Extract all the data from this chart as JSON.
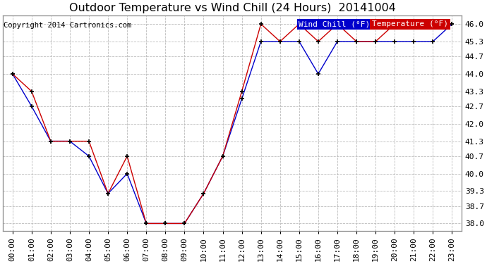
{
  "title": "Outdoor Temperature vs Wind Chill (24 Hours)  20141004",
  "copyright": "Copyright 2014 Cartronics.com",
  "ylim": [
    37.7,
    46.35
  ],
  "yticks": [
    38.0,
    38.7,
    39.3,
    40.0,
    40.7,
    41.3,
    42.0,
    42.7,
    43.3,
    44.0,
    44.7,
    45.3,
    46.0
  ],
  "xtick_labels": [
    "00:00",
    "01:00",
    "02:00",
    "03:00",
    "04:00",
    "05:00",
    "06:00",
    "07:00",
    "08:00",
    "09:00",
    "10:00",
    "11:00",
    "12:00",
    "13:00",
    "14:00",
    "15:00",
    "16:00",
    "17:00",
    "18:00",
    "19:00",
    "20:00",
    "21:00",
    "22:00",
    "23:00"
  ],
  "wind_chill_color": "#0000cc",
  "temp_color": "#cc0000",
  "background_color": "#ffffff",
  "grid_color": "#bbbbbb",
  "legend_wind_chill_bg": "#0000cc",
  "legend_temp_bg": "#cc0000",
  "wind_chill_label": "Wind Chill (°F)",
  "temp_label": "Temperature (°F)",
  "wind_chill_x": [
    0,
    1,
    2,
    3,
    4,
    5,
    6,
    7,
    8,
    9,
    10,
    11,
    12,
    13,
    14,
    15,
    16,
    17,
    18,
    19,
    20,
    21,
    22,
    23
  ],
  "wind_chill_y": [
    44.0,
    42.7,
    41.3,
    41.3,
    40.7,
    39.2,
    40.0,
    38.0,
    38.0,
    38.0,
    39.2,
    40.7,
    43.0,
    45.3,
    45.3,
    45.3,
    44.0,
    45.3,
    45.3,
    45.3,
    45.3,
    45.3,
    45.3,
    46.0
  ],
  "temp_x": [
    0,
    1,
    2,
    3,
    4,
    5,
    6,
    7,
    8,
    9,
    10,
    11,
    12,
    13,
    14,
    15,
    16,
    17,
    18,
    19,
    20,
    21,
    22,
    23
  ],
  "temp_y": [
    44.0,
    43.3,
    41.3,
    41.3,
    41.3,
    39.2,
    40.7,
    38.0,
    38.0,
    38.0,
    39.2,
    40.7,
    43.3,
    46.0,
    45.3,
    46.0,
    45.3,
    46.0,
    45.3,
    45.3,
    46.0,
    46.0,
    46.0,
    46.0
  ],
  "title_fontsize": 11.5,
  "copyright_fontsize": 7.5,
  "tick_fontsize": 8,
  "legend_fontsize": 8,
  "figwidth": 6.9,
  "figheight": 3.75,
  "dpi": 100
}
